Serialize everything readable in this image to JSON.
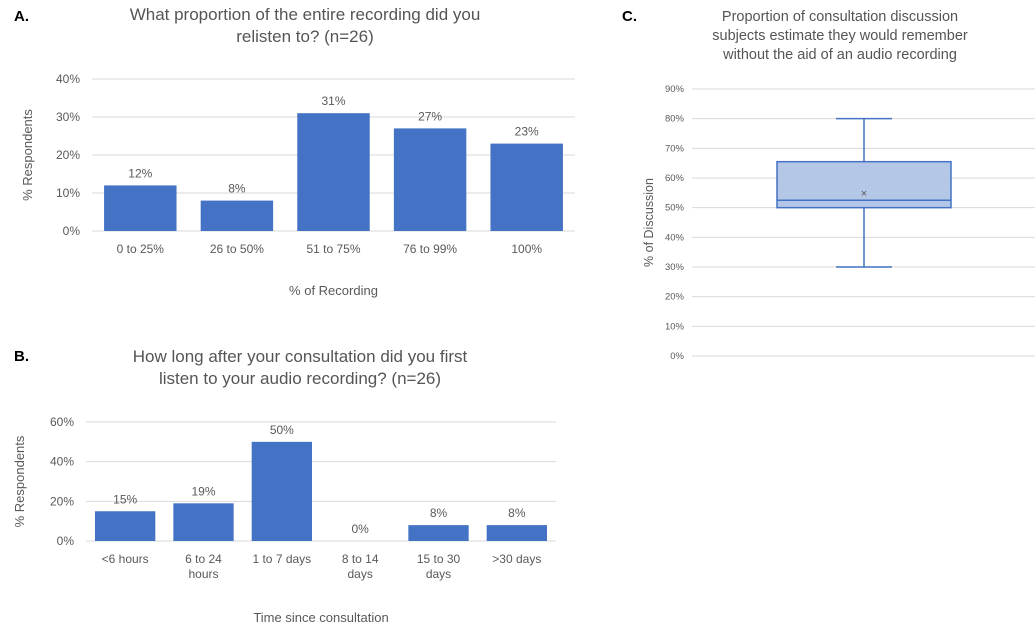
{
  "panels": {
    "a": {
      "letter": "A.",
      "title": "What proportion of the entire recording did you\nrelisten to? (n=26)"
    },
    "b": {
      "letter": "B.",
      "title": "How long after your consultation did you first\nlisten to your audio recording? (n=26)"
    },
    "c": {
      "letter": "C.",
      "title": "Proportion of consultation discussion\nsubjects estimate they would remember\nwithout the aid of an audio recording"
    }
  },
  "colors": {
    "bar": "#4472c4",
    "box_fill": "#b4c7e7",
    "box_stroke": "#4472c4",
    "grid": "#d9d9d9"
  },
  "chart_data": [
    {
      "type": "bar",
      "title": "What proportion of the entire recording did you relisten to? (n=26)",
      "categories": [
        "0 to 25%",
        "26 to 50%",
        "51 to 75%",
        "76 to 99%",
        "100%"
      ],
      "values": [
        12,
        8,
        31,
        27,
        23
      ],
      "data_labels": [
        "12%",
        "8%",
        "31%",
        "27%",
        "23%"
      ],
      "xlabel": "% of Recording",
      "ylabel": "% Respondents",
      "ylim": [
        0,
        40
      ],
      "yticks": [
        "0%",
        "10%",
        "20%",
        "30%",
        "40%"
      ],
      "grid": true
    },
    {
      "type": "bar",
      "title": "How long after your consultation did you first listen to your audio recording? (n=26)",
      "categories": [
        "<6 hours",
        "6 to 24\nhours",
        "1 to 7 days",
        "8 to 14\ndays",
        "15 to 30\ndays",
        ">30 days"
      ],
      "values": [
        15,
        19,
        50,
        0,
        8,
        8
      ],
      "data_labels": [
        "15%",
        "19%",
        "50%",
        "0%",
        "8%",
        "8%"
      ],
      "xlabel": "Time since consultation",
      "ylabel": "% Respondents",
      "ylim": [
        0,
        60
      ],
      "yticks": [
        "0%",
        "20%",
        "40%",
        "60%"
      ],
      "grid": true
    },
    {
      "type": "box",
      "title": "Proportion of consultation discussion subjects estimate they would remember without the aid of an audio recording",
      "ylabel": "% of Discussion",
      "ylim": [
        0,
        90
      ],
      "yticks": [
        "0%",
        "10%",
        "20%",
        "30%",
        "40%",
        "50%",
        "60%",
        "70%",
        "80%",
        "90%"
      ],
      "box": {
        "min": 30,
        "q1": 50,
        "median": 52.5,
        "mean": 55,
        "q3": 65.5,
        "max": 80
      },
      "grid": true
    }
  ]
}
